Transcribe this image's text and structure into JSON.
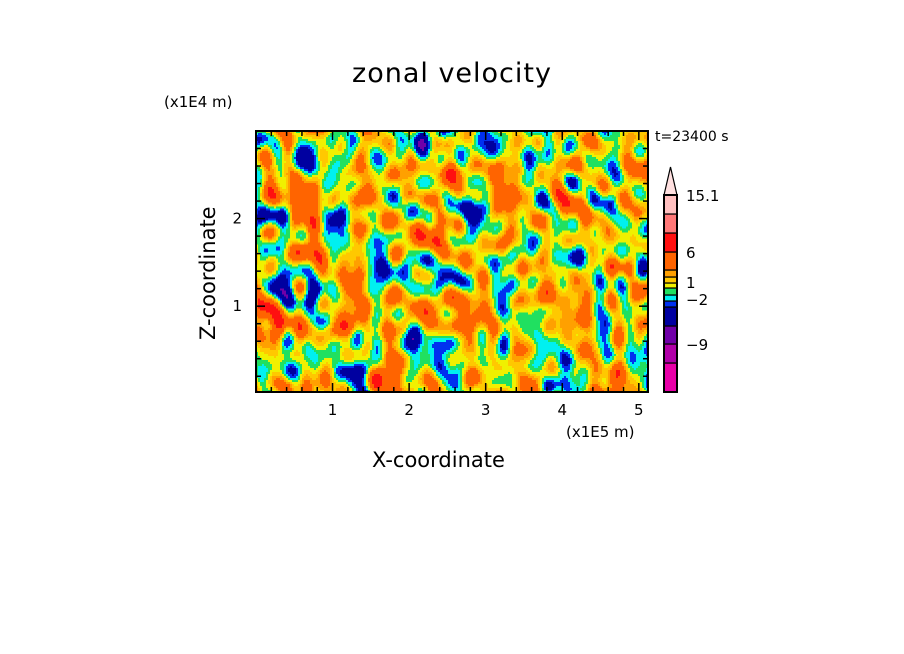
{
  "chart_data": {
    "type": "heatmap",
    "title": "zonal velocity",
    "xlabel": "X-coordinate",
    "ylabel": "Z-coordinate",
    "x_unit": "(x1E5 m)",
    "y_unit": "(x1E4 m)",
    "time_label": "t=23400 s",
    "xlim": [
      0,
      5.12
    ],
    "ylim": [
      0.02,
      3.0
    ],
    "x_ticks": [
      {
        "value": 1,
        "label": "1"
      },
      {
        "value": 2,
        "label": "2"
      },
      {
        "value": 3,
        "label": "3"
      },
      {
        "value": 4,
        "label": "4"
      },
      {
        "value": 5,
        "label": "5"
      }
    ],
    "y_ticks": [
      {
        "value": 1,
        "label": "1"
      },
      {
        "value": 2,
        "label": "2"
      }
    ],
    "contour_levels": [
      -12,
      -9,
      -6,
      -3,
      -2,
      -1,
      0,
      1,
      2,
      3,
      6,
      9,
      12,
      15.1
    ],
    "level_colors": [
      "#e800a8",
      "#b000a8",
      "#7000a8",
      "#0000a0",
      "#0030f0",
      "#00f0f0",
      "#20e060",
      "#f0f000",
      "#ffc800",
      "#ffa000",
      "#ff6400",
      "#ff1010",
      "#ff7878",
      "#ffc0c0",
      "#ffe0e0"
    ],
    "colorbar_labels": [
      {
        "value": 15.1,
        "label": "15.1"
      },
      {
        "value": 6,
        "label": "6"
      },
      {
        "value": 1,
        "label": "1"
      },
      {
        "value": -2,
        "label": "-2"
      },
      {
        "value": -9,
        "label": "-9"
      }
    ],
    "field_value_range": [
      -6,
      7
    ]
  }
}
